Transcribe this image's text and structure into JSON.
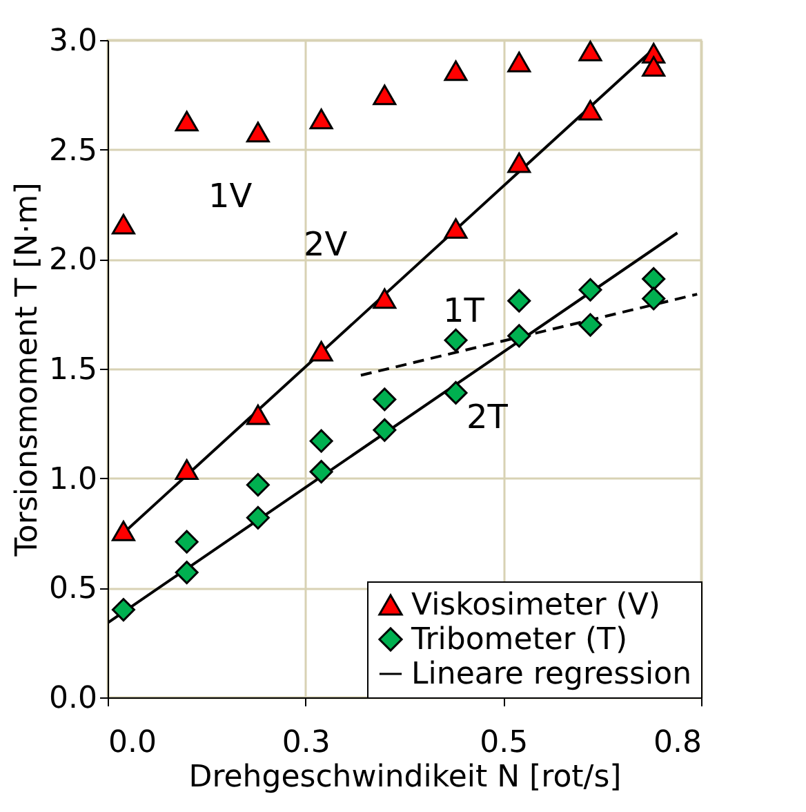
{
  "chart_data": {
    "type": "scatter",
    "xlabel": "Drehgeschwindikeit N [rot/s]",
    "ylabel": "Torsionsmoment T [N·m]",
    "xlim": [
      0,
      0.75
    ],
    "xticks": [
      {
        "value": 0,
        "label": "0.0"
      },
      {
        "value": 0.25,
        "label": "0.3"
      },
      {
        "value": 0.5,
        "label": "0.5"
      },
      {
        "value": 0.75,
        "label": "0.8"
      }
    ],
    "ylim": [
      0,
      3
    ],
    "yticks": [
      {
        "value": 0,
        "label": "0.0"
      },
      {
        "value": 0.5,
        "label": "0.5"
      },
      {
        "value": 1,
        "label": "1.0"
      },
      {
        "value": 1.5,
        "label": "1.5"
      },
      {
        "value": 2,
        "label": "2.0"
      },
      {
        "value": 2.5,
        "label": "2.5"
      },
      {
        "value": 3,
        "label": "3.0"
      }
    ],
    "grid": true,
    "legend": "bottom right",
    "series": [
      {
        "name": "Viskosimeter (V)",
        "type": "scatter",
        "marker": "triangle",
        "color": "#ff0000",
        "x": [
          0.02,
          0.1,
          0.19,
          0.27,
          0.35,
          0.44,
          0.52,
          0.61,
          0.69,
          0.02,
          0.1,
          0.19,
          0.27,
          0.35,
          0.44,
          0.52,
          0.61,
          0.69
        ],
        "values": [
          2.16,
          2.63,
          2.58,
          2.64,
          2.75,
          2.86,
          2.9,
          2.95,
          2.94,
          0.76,
          1.04,
          1.29,
          1.58,
          1.82,
          2.14,
          2.44,
          2.68,
          2.88
        ]
      },
      {
        "name": "Tribometer (T)",
        "type": "scatter",
        "marker": "diamond",
        "color": "#00b050",
        "x": [
          0.02,
          0.1,
          0.1,
          0.19,
          0.19,
          0.27,
          0.27,
          0.35,
          0.35,
          0.44,
          0.44,
          0.52,
          0.52,
          0.61,
          0.61,
          0.69,
          0.69
        ],
        "values": [
          0.4,
          0.71,
          0.57,
          0.97,
          0.82,
          1.17,
          1.03,
          1.36,
          1.22,
          1.39,
          1.63,
          1.81,
          1.65,
          1.86,
          1.7,
          1.91,
          1.82
        ]
      },
      {
        "name": "Lineare regression",
        "type": "line",
        "color": "#000000",
        "line_style": "solid",
        "x": [
          0.02,
          0.69
        ],
        "values": [
          0.75,
          2.96
        ]
      },
      {
        "type": "line",
        "color": "#000000",
        "line_style": "solid",
        "x": [
          0,
          0.72
        ],
        "values": [
          0.34,
          2.12
        ]
      },
      {
        "type": "line",
        "color": "#000000",
        "line_style": "dashed",
        "x": [
          0.32,
          0.745
        ],
        "values": [
          1.47,
          1.84
        ]
      }
    ],
    "annotations": [
      "1V",
      "2V",
      "1T",
      "2T"
    ]
  }
}
